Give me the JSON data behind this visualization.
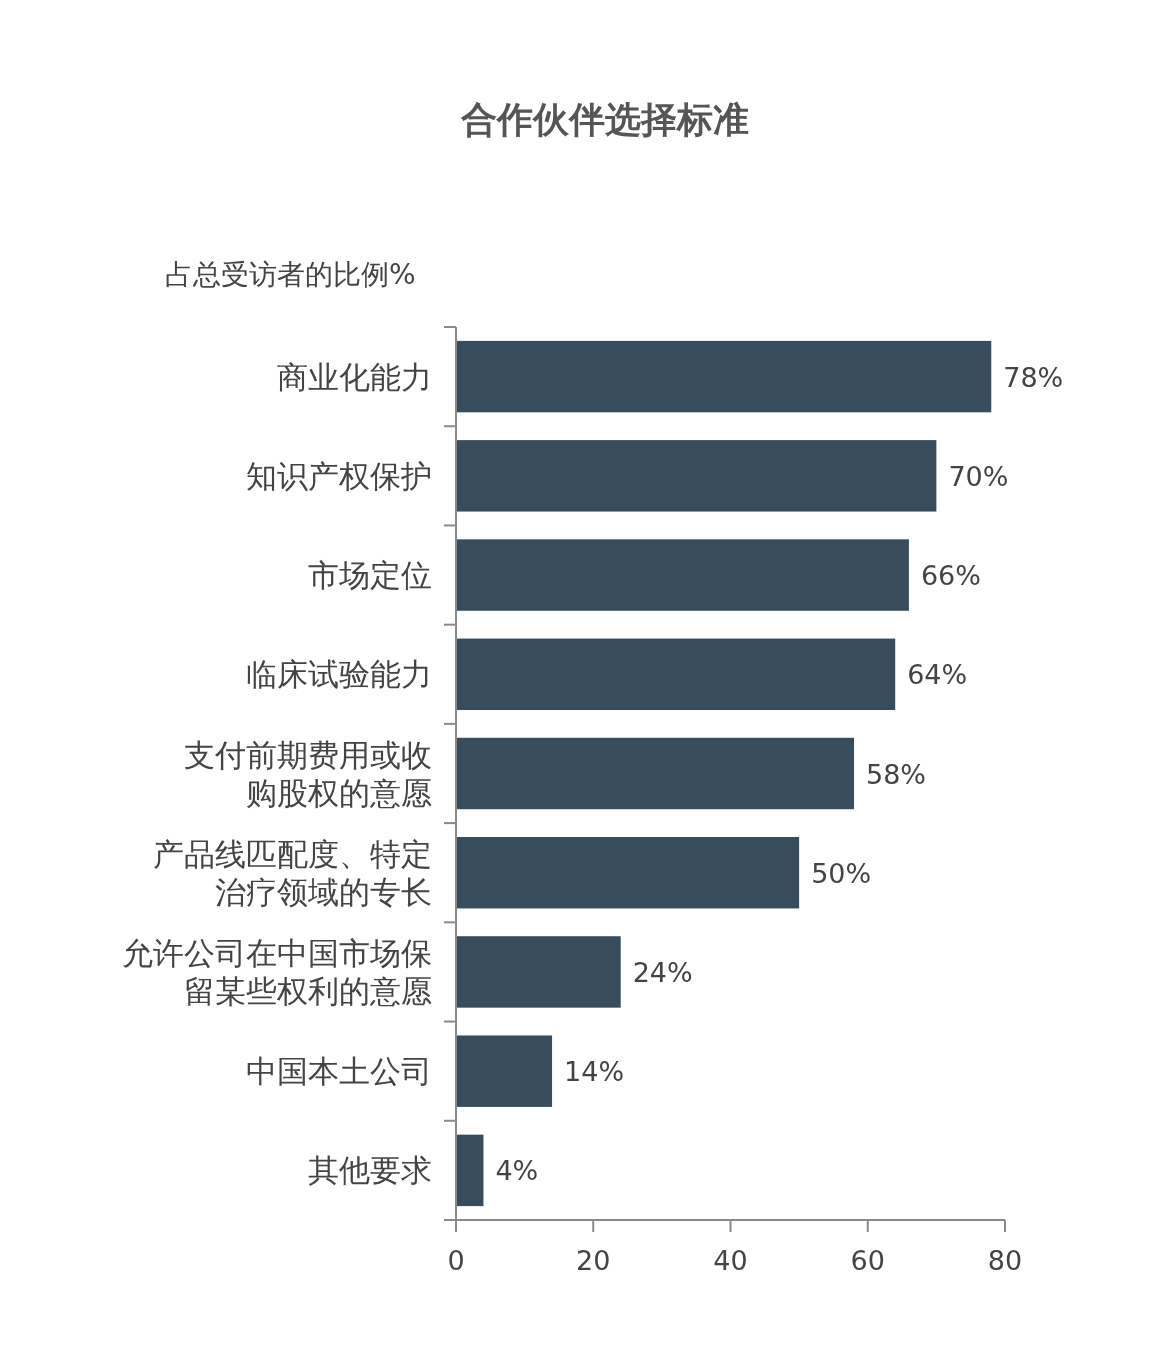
{
  "chart_data": {
    "type": "bar",
    "orientation": "horizontal",
    "title": "合作伙伴选择标准",
    "xlabel": "占总受访者的比例%",
    "categories": [
      "商业化能力",
      "知识产权保护",
      "市场定位",
      "临床试验能力",
      "支付前期费用或收购股权的意愿",
      "产品线匹配度、特定治疗领域的专长",
      "允许公司在中国市场保留某些权利的意愿",
      "中国本土公司",
      "其他要求"
    ],
    "values": [
      78,
      70,
      66,
      64,
      58,
      50,
      24,
      14,
      4
    ],
    "value_labels": [
      "78%",
      "70%",
      "66%",
      "64%",
      "58%",
      "50%",
      "24%",
      "14%",
      "4%"
    ],
    "color": "#374d5e",
    "xlim": [
      0,
      80
    ],
    "xticks": [
      0,
      20,
      40,
      60,
      80
    ],
    "grid": false
  }
}
